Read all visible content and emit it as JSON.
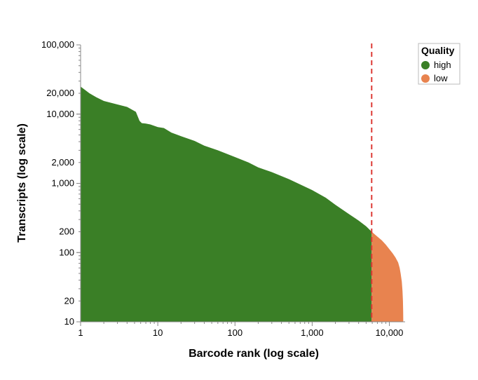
{
  "chart_data": {
    "type": "area",
    "xlabel": "Barcode rank (log scale)",
    "ylabel": "Transcripts (log scale)",
    "x_scale": "log",
    "y_scale": "log",
    "xlim": [
      1,
      16000
    ],
    "ylim": [
      10,
      100000
    ],
    "x_tick_values": [
      1,
      10,
      100,
      1000,
      10000
    ],
    "x_tick_labels": [
      "1",
      "10",
      "100",
      "1,000",
      "10,000"
    ],
    "y_tick_values": [
      10,
      20,
      100,
      200,
      1000,
      2000,
      10000,
      20000,
      100000
    ],
    "y_tick_labels": [
      "10",
      "20",
      "100",
      "200",
      "1,000",
      "2,000",
      "10,000",
      "20,000",
      "100,000"
    ],
    "cutoff_rank": 5900,
    "legend": {
      "title": "Quality",
      "position": "top-right",
      "items": [
        {
          "label": "high",
          "color": "#3a7f26"
        },
        {
          "label": "low",
          "color": "#e8834f"
        }
      ]
    },
    "series": [
      {
        "name": "high",
        "color": "#3a7f26",
        "points": [
          [
            1,
            25000
          ],
          [
            1.3,
            20000
          ],
          [
            1.6,
            17500
          ],
          [
            2,
            15500
          ],
          [
            2.5,
            14500
          ],
          [
            3,
            13800
          ],
          [
            3.5,
            13200
          ],
          [
            4,
            12700
          ],
          [
            4.5,
            11800
          ],
          [
            5.2,
            10800
          ],
          [
            5.8,
            8000
          ],
          [
            6.2,
            7400
          ],
          [
            7,
            7300
          ],
          [
            8,
            7100
          ],
          [
            10,
            6500
          ],
          [
            12,
            6300
          ],
          [
            15,
            5400
          ],
          [
            20,
            4800
          ],
          [
            30,
            4100
          ],
          [
            40,
            3500
          ],
          [
            60,
            3000
          ],
          [
            100,
            2400
          ],
          [
            150,
            2000
          ],
          [
            200,
            1700
          ],
          [
            300,
            1450
          ],
          [
            500,
            1150
          ],
          [
            1000,
            800
          ],
          [
            1500,
            620
          ],
          [
            2000,
            490
          ],
          [
            3000,
            360
          ],
          [
            4000,
            290
          ],
          [
            5000,
            240
          ],
          [
            5900,
            200
          ]
        ]
      },
      {
        "name": "low",
        "color": "#e8834f",
        "points": [
          [
            5900,
            200
          ],
          [
            7000,
            170
          ],
          [
            8000,
            150
          ],
          [
            9000,
            130
          ],
          [
            10000,
            112
          ],
          [
            11000,
            98
          ],
          [
            12000,
            85
          ],
          [
            13000,
            72
          ],
          [
            13600,
            60
          ],
          [
            14000,
            50
          ],
          [
            14500,
            38
          ],
          [
            14800,
            28
          ],
          [
            15000,
            20
          ],
          [
            15100,
            14
          ],
          [
            15150,
            10
          ]
        ]
      }
    ],
    "cutoff_line_color": "#dd3a35"
  }
}
